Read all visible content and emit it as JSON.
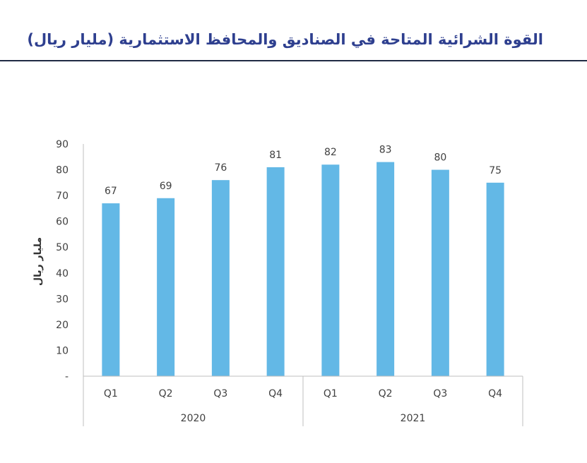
{
  "header": {
    "title": "القوة الشرائية المتاحة في الصناديق والمحافظ الاستثمارية (مليار ريال)"
  },
  "colors": {
    "bar": "#63b8e6",
    "title": "#2e3f8f",
    "axis": "#bfbfbf"
  },
  "chart_data": {
    "type": "bar",
    "ylabel": "مليار ريال",
    "ylim": [
      0,
      90
    ],
    "yticks": [
      "-",
      "10",
      "20",
      "30",
      "40",
      "50",
      "60",
      "70",
      "80",
      "90"
    ],
    "categories": [
      "Q1",
      "Q2",
      "Q3",
      "Q4",
      "Q1",
      "Q2",
      "Q3",
      "Q4"
    ],
    "groups": [
      {
        "label": "2020",
        "categories": [
          "Q1",
          "Q2",
          "Q3",
          "Q4"
        ]
      },
      {
        "label": "2021",
        "categories": [
          "Q1",
          "Q2",
          "Q3",
          "Q4"
        ]
      }
    ],
    "values": [
      67,
      69,
      76,
      81,
      82,
      83,
      80,
      75
    ],
    "data_labels": [
      "67",
      "69",
      "76",
      "81",
      "82",
      "83",
      "80",
      "75"
    ],
    "grid": false,
    "legend": "none"
  }
}
